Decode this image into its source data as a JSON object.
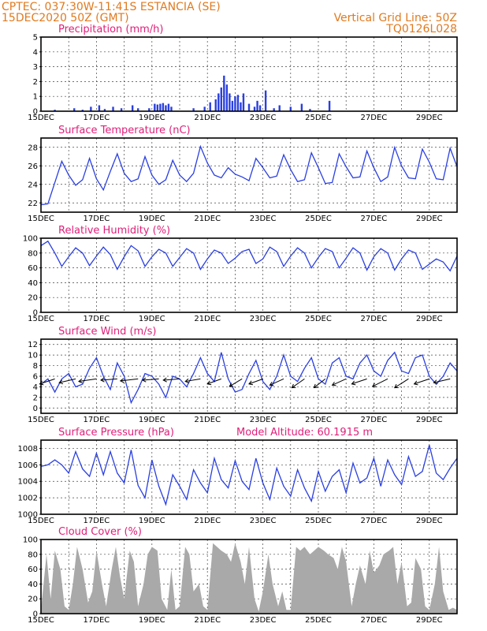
{
  "header": {
    "line1_left": "CPTEC:   037:30W-11:41S   ESTANCIA (SE)",
    "line2_left": "15DEC2020 50Z (GMT)",
    "line2_right": "Vertical Grid Line: 50Z",
    "line3_right": "TQ0126L028"
  },
  "colors": {
    "header": "#e07a1f",
    "panel_title": "#e0207a",
    "series": "#2a3fe0",
    "cloud": "#a9a9a9"
  },
  "chart_data": [
    {
      "type": "bar",
      "title": "Precipitation (mm/h)",
      "x_unit": "day of December 2020",
      "xlim": [
        15,
        30
      ],
      "ylim": [
        0,
        5
      ],
      "yticks": [
        0,
        1,
        2,
        3,
        4,
        5
      ],
      "xticks": [
        "15DEC",
        "17DEC",
        "19DEC",
        "21DEC",
        "23DEC",
        "25DEC",
        "27DEC",
        "29DEC"
      ],
      "grid": true,
      "x": [
        15.5,
        16.2,
        16.5,
        16.8,
        17.1,
        17.3,
        17.6,
        17.9,
        18.3,
        18.5,
        18.9,
        19.1,
        19.2,
        19.3,
        19.4,
        19.5,
        19.6,
        19.7,
        20.5,
        20.9,
        21.1,
        21.3,
        21.4,
        21.5,
        21.6,
        21.7,
        21.8,
        21.9,
        22.0,
        22.1,
        22.2,
        22.3,
        22.5,
        22.7,
        22.8,
        22.9,
        23.1,
        23.4,
        23.6,
        24.0,
        24.4,
        24.7,
        25.4
      ],
      "values": [
        0.1,
        0.2,
        0.1,
        0.3,
        0.4,
        0.15,
        0.3,
        0.2,
        0.4,
        0.2,
        0.2,
        0.5,
        0.45,
        0.5,
        0.55,
        0.4,
        0.5,
        0.3,
        0.2,
        0.3,
        0.6,
        0.8,
        1.2,
        1.6,
        2.4,
        1.8,
        1.2,
        0.7,
        1.0,
        1.1,
        0.6,
        1.2,
        0.5,
        0.3,
        0.7,
        0.4,
        1.4,
        0.2,
        0.4,
        0.3,
        0.5,
        0.15,
        0.7
      ]
    },
    {
      "type": "line",
      "title": "Surface Temperature (nC)",
      "x_unit": "day of December 2020",
      "xlim": [
        15,
        30
      ],
      "ylim": [
        21,
        29
      ],
      "yticks": [
        22,
        24,
        26,
        28
      ],
      "xticks": [
        "15DEC",
        "17DEC",
        "19DEC",
        "21DEC",
        "23DEC",
        "25DEC",
        "27DEC",
        "29DEC"
      ],
      "grid": true,
      "x": [
        15.0,
        15.25,
        15.5,
        15.75,
        16.0,
        16.25,
        16.5,
        16.75,
        17.0,
        17.25,
        17.5,
        17.75,
        18.0,
        18.25,
        18.5,
        18.75,
        19.0,
        19.25,
        19.5,
        19.75,
        20.0,
        20.25,
        20.5,
        20.75,
        21.0,
        21.25,
        21.5,
        21.75,
        22.0,
        22.25,
        22.5,
        22.75,
        23.0,
        23.25,
        23.5,
        23.75,
        24.0,
        24.25,
        24.5,
        24.75,
        25.0,
        25.25,
        25.5,
        25.75,
        26.0,
        26.25,
        26.5,
        26.75,
        27.0,
        27.25,
        27.5,
        27.75,
        28.0,
        28.25,
        28.5,
        28.75,
        29.0,
        29.25,
        29.5,
        29.75,
        30.0
      ],
      "values": [
        21.8,
        21.9,
        24.2,
        26.5,
        25.0,
        23.9,
        24.5,
        26.8,
        24.6,
        23.4,
        25.4,
        27.3,
        25.2,
        24.3,
        24.6,
        27.0,
        25.0,
        24.0,
        24.5,
        26.6,
        25.0,
        24.3,
        25.2,
        28.1,
        26.3,
        25.0,
        24.7,
        25.8,
        25.1,
        24.8,
        24.4,
        26.8,
        25.8,
        24.7,
        24.9,
        27.2,
        25.6,
        24.3,
        24.5,
        27.4,
        25.8,
        24.1,
        24.2,
        27.3,
        25.9,
        24.7,
        24.8,
        27.6,
        25.8,
        24.3,
        24.8,
        28.0,
        26.0,
        24.7,
        24.6,
        27.8,
        26.4,
        24.6,
        24.5,
        27.9,
        25.9
      ]
    },
    {
      "type": "line",
      "title": "Relative Humidity (%)",
      "x_unit": "day of December 2020",
      "xlim": [
        15,
        30
      ],
      "ylim": [
        0,
        100
      ],
      "yticks": [
        0,
        20,
        40,
        60,
        80,
        100
      ],
      "xticks": [
        "15DEC",
        "17DEC",
        "19DEC",
        "21DEC",
        "23DEC",
        "25DEC",
        "27DEC",
        "29DEC"
      ],
      "grid": true,
      "x": [
        15.0,
        15.25,
        15.5,
        15.75,
        16.0,
        16.25,
        16.5,
        16.75,
        17.0,
        17.25,
        17.5,
        17.75,
        18.0,
        18.25,
        18.5,
        18.75,
        19.0,
        19.25,
        19.5,
        19.75,
        20.0,
        20.25,
        20.5,
        20.75,
        21.0,
        21.25,
        21.5,
        21.75,
        22.0,
        22.25,
        22.5,
        22.75,
        23.0,
        23.25,
        23.5,
        23.75,
        24.0,
        24.25,
        24.5,
        24.75,
        25.0,
        25.25,
        25.5,
        25.75,
        26.0,
        26.25,
        26.5,
        26.75,
        27.0,
        27.25,
        27.5,
        27.75,
        28.0,
        28.25,
        28.5,
        28.75,
        29.0,
        29.25,
        29.5,
        29.75,
        30.0
      ],
      "values": [
        90,
        96,
        80,
        62,
        75,
        87,
        80,
        63,
        76,
        88,
        78,
        58,
        75,
        90,
        83,
        62,
        75,
        85,
        80,
        62,
        74,
        86,
        80,
        58,
        72,
        84,
        80,
        66,
        73,
        82,
        85,
        66,
        72,
        88,
        82,
        62,
        76,
        87,
        80,
        60,
        74,
        86,
        82,
        60,
        73,
        87,
        80,
        57,
        75,
        86,
        80,
        57,
        72,
        84,
        80,
        58,
        65,
        72,
        68,
        56,
        76
      ]
    },
    {
      "type": "line",
      "title": "Surface Wind (m/s)",
      "x_unit": "day of December 2020",
      "xlim": [
        15,
        30
      ],
      "ylim": [
        -1,
        13
      ],
      "yticks": [
        0,
        2,
        4,
        6,
        8,
        10,
        12
      ],
      "xticks": [
        "15DEC",
        "17DEC",
        "19DEC",
        "21DEC",
        "23DEC",
        "25DEC",
        "27DEC",
        "29DEC"
      ],
      "grid": true,
      "x": [
        15.0,
        15.25,
        15.5,
        15.75,
        16.0,
        16.25,
        16.5,
        16.75,
        17.0,
        17.25,
        17.5,
        17.75,
        18.0,
        18.25,
        18.5,
        18.75,
        19.0,
        19.25,
        19.5,
        19.75,
        20.0,
        20.25,
        20.5,
        20.75,
        21.0,
        21.25,
        21.5,
        21.75,
        22.0,
        22.25,
        22.5,
        22.75,
        23.0,
        23.25,
        23.5,
        23.75,
        24.0,
        24.25,
        24.5,
        24.75,
        25.0,
        25.25,
        25.5,
        25.75,
        26.0,
        26.25,
        26.5,
        26.75,
        27.0,
        27.25,
        27.5,
        27.75,
        28.0,
        28.25,
        28.5,
        28.75,
        29.0,
        29.25,
        29.5,
        29.75,
        30.0
      ],
      "values": [
        4.5,
        5.5,
        3.0,
        5.5,
        6.5,
        4.0,
        4.5,
        7.5,
        9.5,
        6.0,
        3.5,
        8.5,
        6.0,
        1.0,
        3.5,
        6.5,
        6.0,
        4.5,
        2.0,
        6.0,
        5.5,
        4.0,
        6.5,
        9.5,
        6.5,
        5.0,
        10.5,
        5.5,
        3.0,
        3.5,
        6.5,
        9.0,
        5.0,
        3.5,
        6.0,
        10.0,
        6.0,
        5.0,
        7.5,
        9.5,
        5.5,
        4.5,
        8.5,
        9.5,
        6.0,
        5.5,
        8.5,
        10.0,
        7.0,
        6.0,
        9.0,
        10.5,
        7.0,
        6.5,
        9.5,
        10.0,
        6.0,
        4.5,
        6.0,
        8.5,
        7.0
      ],
      "wind_vectors": {
        "x": [
          15.5,
          16.25,
          17.0,
          17.75,
          18.5,
          19.25,
          20.0,
          20.75,
          21.5,
          22.25,
          23.0,
          23.75,
          24.5,
          25.25,
          26.0,
          26.75,
          27.5,
          28.25,
          29.0,
          29.75
        ],
        "u": [
          -6.0,
          -6.5,
          -7.0,
          -6.5,
          -7.0,
          -6.5,
          -6.5,
          -6.0,
          -5.5,
          -5.0,
          -5.5,
          -5.5,
          -5.0,
          -4.5,
          -5.5,
          -6.0,
          -6.0,
          -5.5,
          -6.0,
          -6.5
        ],
        "v": [
          -2.0,
          -1.5,
          -1.0,
          -0.5,
          -0.8,
          -0.5,
          -0.5,
          -1.0,
          -2.0,
          -3.0,
          -2.0,
          -2.5,
          -3.5,
          -3.5,
          -2.5,
          -2.0,
          -3.0,
          -3.5,
          -2.0,
          -1.5
        ]
      }
    },
    {
      "type": "line",
      "title": "Surface Pressure (hPa)",
      "annotation": "Model Altitude: 60.1915 m",
      "x_unit": "day of December 2020",
      "xlim": [
        15,
        30
      ],
      "ylim": [
        1000,
        1009
      ],
      "yticks": [
        1000,
        1002,
        1004,
        1006,
        1008
      ],
      "xticks": [
        "15DEC",
        "17DEC",
        "19DEC",
        "21DEC",
        "23DEC",
        "25DEC",
        "27DEC",
        "29DEC"
      ],
      "grid": true,
      "x": [
        15.0,
        15.25,
        15.5,
        15.75,
        16.0,
        16.25,
        16.5,
        16.75,
        17.0,
        17.25,
        17.5,
        17.75,
        18.0,
        18.25,
        18.5,
        18.75,
        19.0,
        19.25,
        19.5,
        19.75,
        20.0,
        20.25,
        20.5,
        20.75,
        21.0,
        21.25,
        21.5,
        21.75,
        22.0,
        22.25,
        22.5,
        22.75,
        23.0,
        23.25,
        23.5,
        23.75,
        24.0,
        24.25,
        24.5,
        24.75,
        25.0,
        25.25,
        25.5,
        25.75,
        26.0,
        26.25,
        26.5,
        26.75,
        27.0,
        27.25,
        27.5,
        27.75,
        28.0,
        28.25,
        28.5,
        28.75,
        29.0,
        29.25,
        29.5,
        29.75,
        30.0
      ],
      "values": [
        1005.8,
        1006.0,
        1006.6,
        1006.0,
        1005.0,
        1007.6,
        1005.5,
        1004.6,
        1007.4,
        1004.8,
        1007.6,
        1005.0,
        1003.8,
        1007.8,
        1003.5,
        1002.0,
        1006.6,
        1003.4,
        1001.2,
        1004.8,
        1003.4,
        1001.8,
        1005.4,
        1003.8,
        1002.6,
        1006.8,
        1004.2,
        1003.2,
        1006.5,
        1004.0,
        1003.0,
        1006.8,
        1003.8,
        1001.8,
        1005.6,
        1003.4,
        1002.2,
        1005.4,
        1003.2,
        1001.6,
        1005.2,
        1002.8,
        1004.6,
        1005.4,
        1002.6,
        1006.2,
        1003.8,
        1004.4,
        1006.8,
        1003.4,
        1006.6,
        1004.8,
        1003.6,
        1007.0,
        1004.6,
        1005.2,
        1008.4,
        1005.0,
        1004.2,
        1005.6,
        1006.8
      ]
    },
    {
      "type": "area",
      "title": "Cloud Cover (%)",
      "x_unit": "day of December 2020",
      "xlim": [
        15,
        30
      ],
      "ylim": [
        0,
        100
      ],
      "yticks": [
        0,
        20,
        40,
        60,
        80,
        100
      ],
      "xticks": [
        "15DEC",
        "17DEC",
        "19DEC",
        "21DEC",
        "23DEC",
        "25DEC",
        "27DEC",
        "29DEC"
      ],
      "grid": true,
      "x": [
        15.0,
        15.2,
        15.35,
        15.5,
        15.7,
        15.85,
        16.0,
        16.15,
        16.3,
        16.5,
        16.7,
        16.85,
        17.0,
        17.2,
        17.35,
        17.55,
        17.7,
        17.85,
        18.0,
        18.2,
        18.35,
        18.5,
        18.7,
        18.85,
        19.0,
        19.2,
        19.35,
        19.55,
        19.7,
        19.85,
        20.0,
        20.2,
        20.35,
        20.5,
        20.7,
        20.85,
        21.0,
        21.2,
        21.35,
        21.5,
        21.7,
        21.85,
        22.0,
        22.2,
        22.35,
        22.5,
        22.7,
        22.85,
        23.0,
        23.2,
        23.35,
        23.55,
        23.7,
        23.85,
        24.0,
        24.2,
        24.35,
        24.5,
        24.7,
        24.85,
        25.0,
        25.2,
        25.35,
        25.55,
        25.7,
        25.85,
        26.0,
        26.2,
        26.35,
        26.5,
        26.7,
        26.85,
        27.0,
        27.2,
        27.35,
        27.55,
        27.7,
        27.85,
        28.0,
        28.2,
        28.35,
        28.5,
        28.7,
        28.85,
        29.0,
        29.2,
        29.35,
        29.5,
        29.7,
        29.85,
        30.0
      ],
      "values": [
        5,
        80,
        20,
        85,
        60,
        10,
        5,
        40,
        90,
        60,
        15,
        30,
        85,
        40,
        10,
        60,
        90,
        50,
        20,
        85,
        70,
        10,
        40,
        80,
        90,
        85,
        20,
        5,
        60,
        5,
        10,
        90,
        80,
        30,
        40,
        10,
        5,
        95,
        90,
        85,
        80,
        70,
        95,
        70,
        40,
        90,
        20,
        3,
        30,
        80,
        40,
        10,
        30,
        5,
        5,
        90,
        85,
        90,
        80,
        85,
        90,
        85,
        80,
        75,
        60,
        90,
        70,
        10,
        40,
        65,
        40,
        85,
        55,
        65,
        80,
        85,
        90,
        40,
        70,
        10,
        15,
        75,
        60,
        10,
        5,
        40,
        90,
        30,
        5,
        8,
        5
      ]
    }
  ]
}
